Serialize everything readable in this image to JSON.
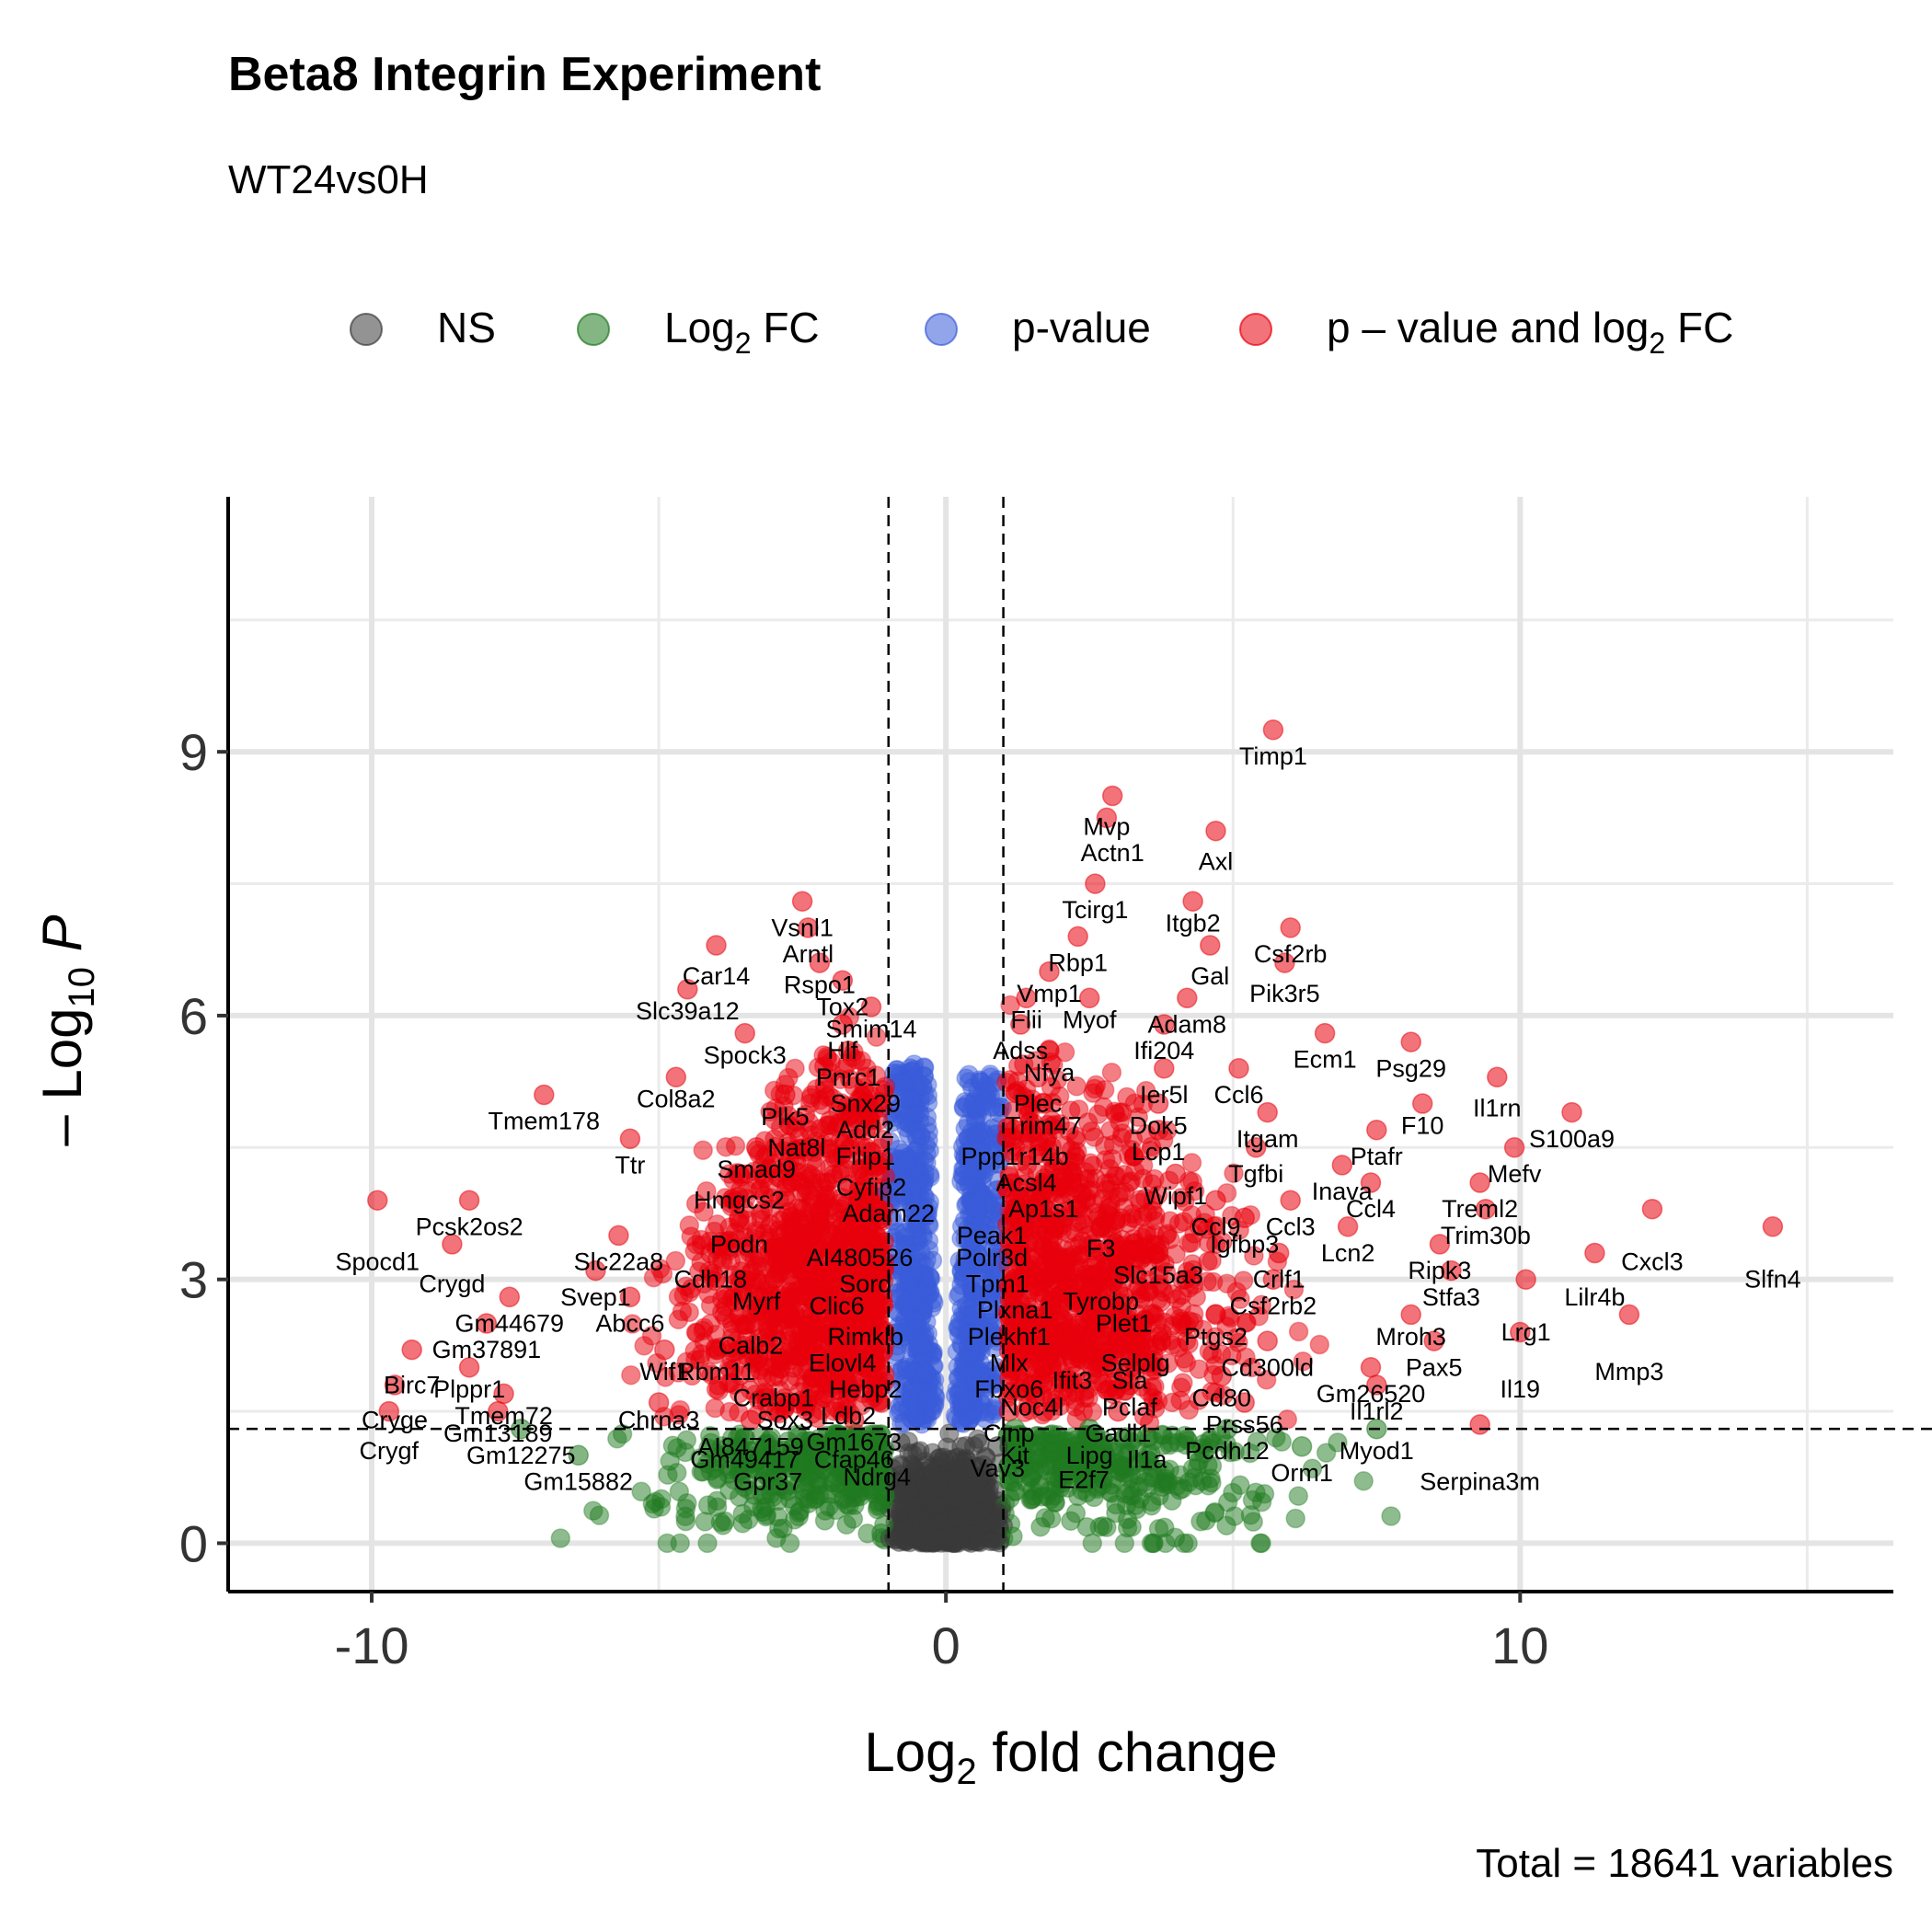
{
  "chart_data": {
    "type": "scatter",
    "title": "Beta8 Integrin Experiment",
    "subtitle": "WT24vs0H",
    "caption": "Total = 18641 variables",
    "xlabel": "Log2 fold change",
    "ylabel": "-Log10 P",
    "xlim": [
      -12.5,
      16.5
    ],
    "ylim": [
      -0.55,
      11.9
    ],
    "x_ticks": [
      -10,
      0,
      10
    ],
    "x_tick_labels": [
      "-10",
      "0",
      "10"
    ],
    "y_ticks": [
      0,
      3,
      6,
      9
    ],
    "y_tick_labels": [
      "0",
      "3",
      "6",
      "9"
    ],
    "grid": true,
    "legend_position": "top",
    "fc_cutoff": 1,
    "p_cutoff_log10": 1.3,
    "colors": {
      "NS": "#3a3a3a",
      "Log2 FC": "#1f7a1f",
      "p-value": "#3a5bd9",
      "p - value and log2 FC": "#e8000b"
    },
    "legend": [
      {
        "key": "NS",
        "label": "NS",
        "sub": ""
      },
      {
        "key": "Log2 FC",
        "label": "Log",
        "sub": "2",
        "after": " FC"
      },
      {
        "key": "p-value",
        "label": "p-value",
        "sub": ""
      },
      {
        "key": "p - value and log2 FC",
        "label": "p – value and log",
        "sub": "2",
        "after": " FC"
      }
    ],
    "labeled_points": [
      {
        "gene": "Timp1",
        "x": 5.7,
        "y": 9.25,
        "lx": 5.7,
        "ly": 8.95
      },
      {
        "gene": "Mvp",
        "x": 2.8,
        "y": 8.25,
        "lx": 2.8,
        "ly": 8.15
      },
      {
        "gene": "Actn1",
        "x": 2.9,
        "y": 8.5,
        "lx": 2.9,
        "ly": 7.85
      },
      {
        "gene": "Axl",
        "x": 4.7,
        "y": 8.1,
        "lx": 4.7,
        "ly": 7.75
      },
      {
        "gene": "Tcirg1",
        "x": 2.6,
        "y": 7.5,
        "lx": 2.6,
        "ly": 7.2
      },
      {
        "gene": "Itgb2",
        "x": 4.3,
        "y": 7.3,
        "lx": 4.3,
        "ly": 7.05
      },
      {
        "gene": "Csf2rb",
        "x": 6.0,
        "y": 7.0,
        "lx": 6.0,
        "ly": 6.7
      },
      {
        "gene": "Rbp1",
        "x": 2.3,
        "y": 6.9,
        "lx": 2.3,
        "ly": 6.6
      },
      {
        "gene": "Gal",
        "x": 4.6,
        "y": 6.8,
        "lx": 4.6,
        "ly": 6.45
      },
      {
        "gene": "Pik3r5",
        "x": 5.9,
        "y": 6.6,
        "lx": 5.9,
        "ly": 6.25
      },
      {
        "gene": "Vmp1",
        "x": 1.8,
        "y": 6.5,
        "lx": 1.8,
        "ly": 6.25
      },
      {
        "gene": "Myof",
        "x": 2.5,
        "y": 6.2,
        "lx": 2.5,
        "ly": 5.95
      },
      {
        "gene": "Flii",
        "x": 1.4,
        "y": 6.2,
        "lx": 1.4,
        "ly": 5.95
      },
      {
        "gene": "Adam8",
        "x": 4.2,
        "y": 6.2,
        "lx": 4.2,
        "ly": 5.9
      },
      {
        "gene": "Ifi204",
        "x": 3.8,
        "y": 5.9,
        "lx": 3.8,
        "ly": 5.6
      },
      {
        "gene": "Adss",
        "x": 1.3,
        "y": 5.9,
        "lx": 1.3,
        "ly": 5.6
      },
      {
        "gene": "Ecm1",
        "x": 6.6,
        "y": 5.8,
        "lx": 6.6,
        "ly": 5.5
      },
      {
        "gene": "Psg29",
        "x": 8.1,
        "y": 5.7,
        "lx": 8.1,
        "ly": 5.4
      },
      {
        "gene": "Nfya",
        "x": 1.8,
        "y": 5.6,
        "lx": 1.8,
        "ly": 5.35
      },
      {
        "gene": "Ier5l",
        "x": 3.8,
        "y": 5.4,
        "lx": 3.8,
        "ly": 5.1
      },
      {
        "gene": "Ccl6",
        "x": 5.1,
        "y": 5.4,
        "lx": 5.1,
        "ly": 5.1
      },
      {
        "gene": "Il1rn",
        "x": 9.6,
        "y": 5.3,
        "lx": 9.6,
        "ly": 4.95
      },
      {
        "gene": "Plec",
        "x": 1.6,
        "y": 5.3,
        "lx": 1.6,
        "ly": 5.0
      },
      {
        "gene": "F10",
        "x": 8.3,
        "y": 5.0,
        "lx": 8.3,
        "ly": 4.75
      },
      {
        "gene": "Trim47",
        "x": 1.7,
        "y": 5.0,
        "lx": 1.7,
        "ly": 4.75
      },
      {
        "gene": "Dok5",
        "x": 3.7,
        "y": 5.0,
        "lx": 3.7,
        "ly": 4.75
      },
      {
        "gene": "Itgam",
        "x": 5.6,
        "y": 4.9,
        "lx": 5.6,
        "ly": 4.6
      },
      {
        "gene": "S100a9",
        "x": 10.9,
        "y": 4.9,
        "lx": 10.9,
        "ly": 4.6
      },
      {
        "gene": "Lcp1",
        "x": 3.7,
        "y": 4.7,
        "lx": 3.7,
        "ly": 4.45
      },
      {
        "gene": "Ptafr",
        "x": 7.5,
        "y": 4.7,
        "lx": 7.5,
        "ly": 4.4
      },
      {
        "gene": "Ppp1r14b",
        "x": 1.2,
        "y": 4.7,
        "lx": 1.2,
        "ly": 4.4
      },
      {
        "gene": "Mefv",
        "x": 9.9,
        "y": 4.5,
        "lx": 9.9,
        "ly": 4.2
      },
      {
        "gene": "Tgfbi",
        "x": 5.4,
        "y": 4.5,
        "lx": 5.4,
        "ly": 4.2
      },
      {
        "gene": "Acsl4",
        "x": 1.4,
        "y": 4.4,
        "lx": 1.4,
        "ly": 4.1
      },
      {
        "gene": "Inava",
        "x": 6.9,
        "y": 4.3,
        "lx": 6.9,
        "ly": 4.0
      },
      {
        "gene": "Wipf1",
        "x": 4.0,
        "y": 4.2,
        "lx": 4.0,
        "ly": 3.95
      },
      {
        "gene": "Ap1s1",
        "x": 1.7,
        "y": 4.1,
        "lx": 1.7,
        "ly": 3.8
      },
      {
        "gene": "Treml2",
        "x": 9.3,
        "y": 4.1,
        "lx": 9.3,
        "ly": 3.8
      },
      {
        "gene": "Ccl4",
        "x": 7.4,
        "y": 4.1,
        "lx": 7.4,
        "ly": 3.8
      },
      {
        "gene": "Ccl9",
        "x": 4.7,
        "y": 3.9,
        "lx": 4.7,
        "ly": 3.6
      },
      {
        "gene": "Ccl3",
        "x": 6.0,
        "y": 3.9,
        "lx": 6.0,
        "ly": 3.6
      },
      {
        "gene": "Peak1",
        "x": 0.8,
        "y": 3.8,
        "lx": 0.8,
        "ly": 3.5
      },
      {
        "gene": "Trim30b",
        "x": 9.4,
        "y": 3.8,
        "lx": 9.4,
        "ly": 3.5
      },
      {
        "gene": "Igfbp3",
        "x": 5.2,
        "y": 3.7,
        "lx": 5.2,
        "ly": 3.4
      },
      {
        "gene": "F3",
        "x": 2.7,
        "y": 3.6,
        "lx": 2.7,
        "ly": 3.35
      },
      {
        "gene": "Lcn2",
        "x": 7.0,
        "y": 3.6,
        "lx": 7.0,
        "ly": 3.3
      },
      {
        "gene": "Polr3d",
        "x": 0.8,
        "y": 3.5,
        "lx": 0.8,
        "ly": 3.25
      },
      {
        "gene": "Cxcl3",
        "x": 12.3,
        "y": 3.8,
        "lx": 12.3,
        "ly": 3.2
      },
      {
        "gene": "Slfn4",
        "x": 14.4,
        "y": 3.6,
        "lx": 14.4,
        "ly": 3.0
      },
      {
        "gene": "Ripk3",
        "x": 8.6,
        "y": 3.4,
        "lx": 8.6,
        "ly": 3.1
      },
      {
        "gene": "Slc15a3",
        "x": 3.7,
        "y": 3.3,
        "lx": 3.7,
        "ly": 3.05
      },
      {
        "gene": "Crlf1",
        "x": 5.8,
        "y": 3.3,
        "lx": 5.8,
        "ly": 3.0
      },
      {
        "gene": "Tpm1",
        "x": 0.9,
        "y": 3.2,
        "lx": 0.9,
        "ly": 2.95
      },
      {
        "gene": "Lilr4b",
        "x": 11.3,
        "y": 3.3,
        "lx": 11.3,
        "ly": 2.8
      },
      {
        "gene": "Stfa3",
        "x": 8.8,
        "y": 3.1,
        "lx": 8.8,
        "ly": 2.8
      },
      {
        "gene": "Tyrobp",
        "x": 2.7,
        "y": 3.0,
        "lx": 2.7,
        "ly": 2.75
      },
      {
        "gene": "Csf2rb2",
        "x": 5.7,
        "y": 3.0,
        "lx": 5.7,
        "ly": 2.7
      },
      {
        "gene": "Plxna1",
        "x": 1.2,
        "y": 2.9,
        "lx": 1.2,
        "ly": 2.65
      },
      {
        "gene": "Plet1",
        "x": 3.1,
        "y": 2.8,
        "lx": 3.1,
        "ly": 2.5
      },
      {
        "gene": "Lrg1",
        "x": 10.1,
        "y": 3.0,
        "lx": 10.1,
        "ly": 2.4
      },
      {
        "gene": "Plekhf1",
        "x": 1.1,
        "y": 2.6,
        "lx": 1.1,
        "ly": 2.35
      },
      {
        "gene": "Ptgs2",
        "x": 4.7,
        "y": 2.6,
        "lx": 4.7,
        "ly": 2.35
      },
      {
        "gene": "Mroh3",
        "x": 8.1,
        "y": 2.6,
        "lx": 8.1,
        "ly": 2.35
      },
      {
        "gene": "Mlx",
        "x": 1.1,
        "y": 2.3,
        "lx": 1.1,
        "ly": 2.05
      },
      {
        "gene": "Selplg",
        "x": 3.3,
        "y": 2.3,
        "lx": 3.3,
        "ly": 2.05
      },
      {
        "gene": "Cd300ld",
        "x": 5.6,
        "y": 2.3,
        "lx": 5.6,
        "ly": 2.0
      },
      {
        "gene": "Pax5",
        "x": 8.5,
        "y": 2.3,
        "lx": 8.5,
        "ly": 2.0
      },
      {
        "gene": "Mmp3",
        "x": 11.9,
        "y": 2.6,
        "lx": 11.9,
        "ly": 1.95
      },
      {
        "gene": "Ifit3",
        "x": 2.2,
        "y": 2.1,
        "lx": 2.2,
        "ly": 1.85
      },
      {
        "gene": "Sla",
        "x": 3.2,
        "y": 2.1,
        "lx": 3.2,
        "ly": 1.85
      },
      {
        "gene": "Fbxo6",
        "x": 1.1,
        "y": 2.0,
        "lx": 1.1,
        "ly": 1.75
      },
      {
        "gene": "Il19",
        "x": 10.0,
        "y": 2.4,
        "lx": 10.0,
        "ly": 1.75
      },
      {
        "gene": "Gm26520",
        "x": 7.4,
        "y": 2.0,
        "lx": 7.4,
        "ly": 1.7
      },
      {
        "gene": "Cd80",
        "x": 4.8,
        "y": 1.9,
        "lx": 4.8,
        "ly": 1.65
      },
      {
        "gene": "Pclaf",
        "x": 3.2,
        "y": 1.8,
        "lx": 3.2,
        "ly": 1.55
      },
      {
        "gene": "Noc4l",
        "x": 1.5,
        "y": 1.8,
        "lx": 1.5,
        "ly": 1.55
      },
      {
        "gene": "Il1rl2",
        "x": 7.5,
        "y": 1.8,
        "lx": 7.5,
        "ly": 1.5
      },
      {
        "gene": "Prss56",
        "x": 5.2,
        "y": 1.6,
        "lx": 5.2,
        "ly": 1.35
      },
      {
        "gene": "Gadl1",
        "x": 3.0,
        "y": 1.5,
        "lx": 3.0,
        "ly": 1.25
      },
      {
        "gene": "Cinp",
        "x": 1.1,
        "y": 1.5,
        "lx": 1.1,
        "ly": 1.25
      },
      {
        "gene": "Pcdh12",
        "x": 4.9,
        "y": 1.3,
        "lx": 4.9,
        "ly": 1.05
      },
      {
        "gene": "Myod1",
        "x": 7.5,
        "y": 1.3,
        "lx": 7.5,
        "ly": 1.05
      },
      {
        "gene": "Kit",
        "x": 1.2,
        "y": 1.3,
        "lx": 1.2,
        "ly": 1.0
      },
      {
        "gene": "Lipg",
        "x": 2.5,
        "y": 1.3,
        "lx": 2.5,
        "ly": 1.0
      },
      {
        "gene": "Il1a",
        "x": 3.5,
        "y": 1.2,
        "lx": 3.5,
        "ly": 0.95
      },
      {
        "gene": "Orm1",
        "x": 6.2,
        "y": 1.1,
        "lx": 6.2,
        "ly": 0.8
      },
      {
        "gene": "Serpina3m",
        "x": 9.3,
        "y": 1.35,
        "lx": 9.3,
        "ly": 0.7
      },
      {
        "gene": "Vav3",
        "x": 0.9,
        "y": 1.1,
        "lx": 0.9,
        "ly": 0.85
      },
      {
        "gene": "E2f7",
        "x": 2.4,
        "y": 1.0,
        "lx": 2.4,
        "ly": 0.72
      },
      {
        "gene": "Vsnl1",
        "x": -2.5,
        "y": 7.3,
        "lx": -2.5,
        "ly": 7.0
      },
      {
        "gene": "Arntl",
        "x": -2.4,
        "y": 7.0,
        "lx": -2.4,
        "ly": 6.7
      },
      {
        "gene": "Car14",
        "x": -4.0,
        "y": 6.8,
        "lx": -4.0,
        "ly": 6.45
      },
      {
        "gene": "Rspo1",
        "x": -2.2,
        "y": 6.6,
        "lx": -2.2,
        "ly": 6.35
      },
      {
        "gene": "Slc39a12",
        "x": -4.5,
        "y": 6.3,
        "lx": -4.5,
        "ly": 6.05
      },
      {
        "gene": "Tox2",
        "x": -1.8,
        "y": 6.4,
        "lx": -1.8,
        "ly": 6.1
      },
      {
        "gene": "Smim14",
        "x": -1.3,
        "y": 6.1,
        "lx": -1.3,
        "ly": 5.85
      },
      {
        "gene": "Spock3",
        "x": -3.5,
        "y": 5.8,
        "lx": -3.5,
        "ly": 5.55
      },
      {
        "gene": "Hlf",
        "x": -1.8,
        "y": 5.9,
        "lx": -1.8,
        "ly": 5.6
      },
      {
        "gene": "Pnrc1",
        "x": -1.7,
        "y": 5.6,
        "lx": -1.7,
        "ly": 5.3
      },
      {
        "gene": "Tmem178",
        "x": -7.0,
        "y": 5.1,
        "lx": -7.0,
        "ly": 4.8
      },
      {
        "gene": "Col8a2",
        "x": -4.7,
        "y": 5.3,
        "lx": -4.7,
        "ly": 5.05
      },
      {
        "gene": "Snx29",
        "x": -1.4,
        "y": 5.3,
        "lx": -1.4,
        "ly": 5.0
      },
      {
        "gene": "Plk5",
        "x": -2.8,
        "y": 5.1,
        "lx": -2.8,
        "ly": 4.85
      },
      {
        "gene": "Add2",
        "x": -1.4,
        "y": 5.0,
        "lx": -1.4,
        "ly": 4.7
      },
      {
        "gene": "Nat8l",
        "x": -2.6,
        "y": 4.8,
        "lx": -2.6,
        "ly": 4.5
      },
      {
        "gene": "Filip1",
        "x": -1.4,
        "y": 4.7,
        "lx": -1.4,
        "ly": 4.4
      },
      {
        "gene": "Ttr",
        "x": -5.5,
        "y": 4.6,
        "lx": -5.5,
        "ly": 4.3
      },
      {
        "gene": "Smad9",
        "x": -3.3,
        "y": 4.5,
        "lx": -3.3,
        "ly": 4.25
      },
      {
        "gene": "Cyfip2",
        "x": -1.3,
        "y": 4.3,
        "lx": -1.3,
        "ly": 4.05
      },
      {
        "gene": "Hmgcs2",
        "x": -3.6,
        "y": 4.2,
        "lx": -3.6,
        "ly": 3.9
      },
      {
        "gene": "Adam22",
        "x": -1.0,
        "y": 4.0,
        "lx": -1.0,
        "ly": 3.75
      },
      {
        "gene": "Pcsk2os2",
        "x": -8.3,
        "y": 3.9,
        "lx": -8.3,
        "ly": 3.6
      },
      {
        "gene": "Podn",
        "x": -3.6,
        "y": 3.7,
        "lx": -3.6,
        "ly": 3.4
      },
      {
        "gene": "AI480526",
        "x": -1.5,
        "y": 3.5,
        "lx": -1.5,
        "ly": 3.25
      },
      {
        "gene": "Spocd1",
        "x": -9.9,
        "y": 3.9,
        "lx": -9.9,
        "ly": 3.2
      },
      {
        "gene": "Slc22a8",
        "x": -5.7,
        "y": 3.5,
        "lx": -5.7,
        "ly": 3.2
      },
      {
        "gene": "Crygd",
        "x": -8.6,
        "y": 3.4,
        "lx": -8.6,
        "ly": 2.95
      },
      {
        "gene": "Cdh18",
        "x": -4.1,
        "y": 3.3,
        "lx": -4.1,
        "ly": 3.0
      },
      {
        "gene": "Sord",
        "x": -1.4,
        "y": 3.2,
        "lx": -1.4,
        "ly": 2.95
      },
      {
        "gene": "Svep1",
        "x": -6.1,
        "y": 3.1,
        "lx": -6.1,
        "ly": 2.8
      },
      {
        "gene": "Myrf",
        "x": -3.3,
        "y": 3.0,
        "lx": -3.3,
        "ly": 2.75
      },
      {
        "gene": "Clic6",
        "x": -1.9,
        "y": 3.0,
        "lx": -1.9,
        "ly": 2.7
      },
      {
        "gene": "Gm44679",
        "x": -7.6,
        "y": 2.8,
        "lx": -7.6,
        "ly": 2.5
      },
      {
        "gene": "Abcc6",
        "x": -5.5,
        "y": 2.8,
        "lx": -5.5,
        "ly": 2.5
      },
      {
        "gene": "Rimklb",
        "x": -1.4,
        "y": 2.6,
        "lx": -1.4,
        "ly": 2.35
      },
      {
        "gene": "Calb2",
        "x": -3.4,
        "y": 2.5,
        "lx": -3.4,
        "ly": 2.25
      },
      {
        "gene": "Gm37891",
        "x": -8.0,
        "y": 2.5,
        "lx": -8.0,
        "ly": 2.2
      },
      {
        "gene": "Elovl4",
        "x": -1.8,
        "y": 2.3,
        "lx": -1.8,
        "ly": 2.05
      },
      {
        "gene": "Wif1",
        "x": -4.9,
        "y": 2.2,
        "lx": -4.9,
        "ly": 1.95
      },
      {
        "gene": "Rbm11",
        "x": -4.0,
        "y": 2.2,
        "lx": -4.0,
        "ly": 1.95
      },
      {
        "gene": "Birc7",
        "x": -9.3,
        "y": 2.2,
        "lx": -9.3,
        "ly": 1.8
      },
      {
        "gene": "Plppr1",
        "x": -8.3,
        "y": 2.0,
        "lx": -8.3,
        "ly": 1.75
      },
      {
        "gene": "Hebp2",
        "x": -1.4,
        "y": 2.0,
        "lx": -1.4,
        "ly": 1.75
      },
      {
        "gene": "Crabp1",
        "x": -3.0,
        "y": 1.9,
        "lx": -3.0,
        "ly": 1.65
      },
      {
        "gene": "Tmem72",
        "x": -7.7,
        "y": 1.7,
        "lx": -7.7,
        "ly": 1.45
      },
      {
        "gene": "Ldb2",
        "x": -1.7,
        "y": 1.7,
        "lx": -1.7,
        "ly": 1.45
      },
      {
        "gene": "Chrna3",
        "x": -5.0,
        "y": 1.6,
        "lx": -5.0,
        "ly": 1.4
      },
      {
        "gene": "Sox3",
        "x": -2.8,
        "y": 1.6,
        "lx": -2.8,
        "ly": 1.4
      },
      {
        "gene": "Crygе",
        "x": -9.6,
        "y": 1.8,
        "lx": -9.6,
        "ly": 1.4
      },
      {
        "gene": "Gm13189",
        "x": -7.8,
        "y": 1.5,
        "lx": -7.8,
        "ly": 1.25
      },
      {
        "gene": "Gm1673",
        "x": -1.6,
        "y": 1.4,
        "lx": -1.6,
        "ly": 1.15
      },
      {
        "gene": "AI847159",
        "x": -3.4,
        "y": 1.4,
        "lx": -3.4,
        "ly": 1.1
      },
      {
        "gene": "Crygf",
        "x": -9.7,
        "y": 1.5,
        "lx": -9.7,
        "ly": 1.05
      },
      {
        "gene": "Gm12275",
        "x": -7.4,
        "y": 1.3,
        "lx": -7.4,
        "ly": 1.0
      },
      {
        "gene": "Gm49417",
        "x": -3.5,
        "y": 1.2,
        "lx": -3.5,
        "ly": 0.95
      },
      {
        "gene": "Cfap46",
        "x": -1.6,
        "y": 1.2,
        "lx": -1.6,
        "ly": 0.95
      },
      {
        "gene": "Ndrg4",
        "x": -1.2,
        "y": 1.0,
        "lx": -1.2,
        "ly": 0.75
      },
      {
        "gene": "Gm15882",
        "x": -6.4,
        "y": 1.0,
        "lx": -6.4,
        "ly": 0.7
      },
      {
        "gene": "Gpr37",
        "x": -3.1,
        "y": 1.0,
        "lx": -3.1,
        "ly": 0.7
      }
    ]
  }
}
